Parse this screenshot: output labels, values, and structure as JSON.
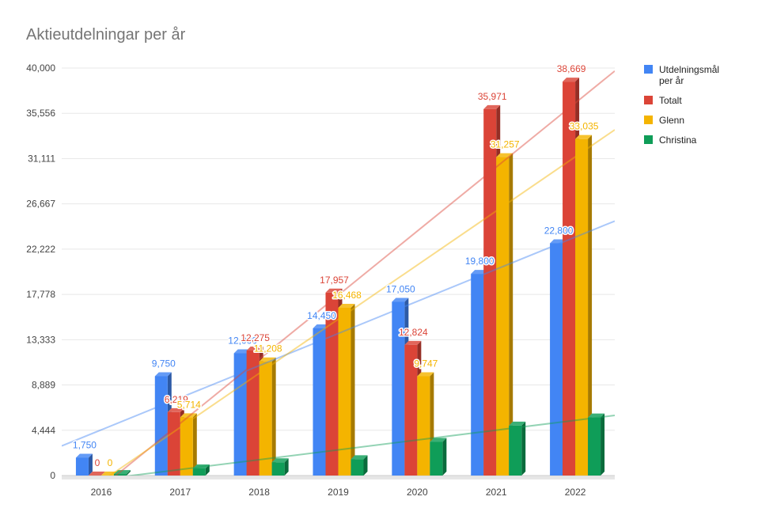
{
  "chart_data": {
    "type": "bar",
    "title": "Aktieutdelningar per år",
    "xlabel": "",
    "ylabel": "",
    "categories": [
      "2016",
      "2017",
      "2018",
      "2019",
      "2020",
      "2021",
      "2022"
    ],
    "ylim": [
      0,
      40000
    ],
    "yticks": [
      "0",
      "4,444",
      "8,889",
      "13,333",
      "17,778",
      "22,222",
      "26,667",
      "31,111",
      "35,556",
      "40,000"
    ],
    "ytick_values": [
      0,
      4444,
      8889,
      13333,
      17778,
      22222,
      26667,
      31111,
      35556,
      40000
    ],
    "grid": true,
    "legend_position": "right",
    "trendlines": true,
    "series": [
      {
        "name": "Utdelningsmål per år",
        "legend_lines": [
          "Utdelningsmål",
          "per år"
        ],
        "color": "#4285f4",
        "label_color": "#4285f4",
        "values": [
          1750,
          9750,
          12000,
          14450,
          17050,
          19800,
          22800
        ],
        "labels": [
          "1,750",
          "9,750",
          "12,000",
          "14,450",
          "17,050",
          "19,800",
          "22,800"
        ]
      },
      {
        "name": "Totalt",
        "legend_lines": [
          "Totalt"
        ],
        "color": "#db4437",
        "label_color": "#db4437",
        "values": [
          0,
          6219,
          12275,
          17957,
          12824,
          35971,
          38669
        ],
        "labels": [
          "0",
          "6,219",
          "12,275",
          "17,957",
          "12,824",
          "35,971",
          "38,669"
        ]
      },
      {
        "name": "Glenn",
        "legend_lines": [
          "Glenn"
        ],
        "color": "#f4b400",
        "label_color": "#f4b400",
        "values": [
          0,
          5714,
          11208,
          16468,
          9747,
          31257,
          33035
        ],
        "labels": [
          "0",
          "5,714",
          "11,208",
          "16,468",
          "9,747",
          "31,257",
          "33,035"
        ]
      },
      {
        "name": "Christina",
        "legend_lines": [
          "Christina"
        ],
        "color": "#0f9d58",
        "label_color": "#0f9d58",
        "values": [
          150,
          700,
          1300,
          1600,
          3300,
          4900,
          5700
        ],
        "labels": []
      }
    ]
  }
}
